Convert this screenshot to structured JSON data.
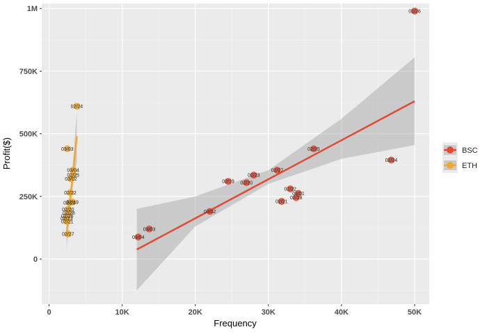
{
  "chart_data": {
    "type": "scatter",
    "xlabel": "Frequency",
    "ylabel": "Profit($)",
    "xlim": [
      -1000,
      52000
    ],
    "ylim": [
      -180000,
      1020000
    ],
    "x_ticks": [
      {
        "value": 0,
        "label": "0"
      },
      {
        "value": 10000,
        "label": "10K"
      },
      {
        "value": 20000,
        "label": "20K"
      },
      {
        "value": 30000,
        "label": "30K"
      },
      {
        "value": 40000,
        "label": "40K"
      },
      {
        "value": 50000,
        "label": "50K"
      }
    ],
    "y_ticks": [
      {
        "value": 0,
        "label": "0"
      },
      {
        "value": 250000,
        "label": "250K"
      },
      {
        "value": 500000,
        "label": "500K"
      },
      {
        "value": 750000,
        "label": "750K"
      },
      {
        "value": 1000000,
        "label": "1M"
      }
    ],
    "grid": true,
    "legend_position": "right",
    "series": [
      {
        "name": "BSC",
        "color": "#e24a33",
        "points": [
          {
            "x": 50000,
            "y": 990000,
            "label": "02/26"
          },
          {
            "x": 36200,
            "y": 440000,
            "label": "02/25"
          },
          {
            "x": 46800,
            "y": 395000,
            "label": "02/24"
          },
          {
            "x": 31200,
            "y": 355000,
            "label": "02/27"
          },
          {
            "x": 28000,
            "y": 335000,
            "label": "02/23"
          },
          {
            "x": 24500,
            "y": 310000,
            "label": "02/19"
          },
          {
            "x": 27000,
            "y": 305000,
            "label": "02/20"
          },
          {
            "x": 33000,
            "y": 280000,
            "label": "02/22"
          },
          {
            "x": 34100,
            "y": 262000,
            "label": "03/01"
          },
          {
            "x": 33800,
            "y": 245000,
            "label": "02/28"
          },
          {
            "x": 31800,
            "y": 230000,
            "label": "02/21"
          },
          {
            "x": 22000,
            "y": 190000,
            "label": "03/02"
          },
          {
            "x": 13700,
            "y": 120000,
            "label": "03/03"
          },
          {
            "x": 12200,
            "y": 88000,
            "label": "03/04"
          }
        ],
        "fit": {
          "x1": 12000,
          "y1": 38000,
          "x2": 50000,
          "y2": 630000
        },
        "band": {
          "upper": [
            [
              12000,
              200000
            ],
            [
              20000,
              250000
            ],
            [
              30000,
              355000
            ],
            [
              40000,
              560000
            ],
            [
              50000,
              805000
            ]
          ],
          "lower": [
            [
              12000,
              -125000
            ],
            [
              20000,
              130000
            ],
            [
              30000,
              300000
            ],
            [
              40000,
              400000
            ],
            [
              50000,
              455000
            ]
          ]
        }
      },
      {
        "name": "ETH",
        "color": "#f0a830",
        "points": [
          {
            "x": 3800,
            "y": 610000,
            "label": "02/24"
          },
          {
            "x": 2500,
            "y": 440000,
            "label": "03/03"
          },
          {
            "x": 3300,
            "y": 355000,
            "label": "03/04"
          },
          {
            "x": 3300,
            "y": 335000,
            "label": "02/25"
          },
          {
            "x": 3000,
            "y": 320000,
            "label": "03/02"
          },
          {
            "x": 2900,
            "y": 265000,
            "label": "02/22"
          },
          {
            "x": 3200,
            "y": 228000,
            "label": "02/19"
          },
          {
            "x": 2800,
            "y": 225000,
            "label": "02/20"
          },
          {
            "x": 2600,
            "y": 198000,
            "label": "02/20"
          },
          {
            "x": 2700,
            "y": 185000,
            "label": "02/28"
          },
          {
            "x": 2500,
            "y": 172000,
            "label": "02/26"
          },
          {
            "x": 2400,
            "y": 162000,
            "label": "02/23"
          },
          {
            "x": 2500,
            "y": 150000,
            "label": "02/21"
          },
          {
            "x": 2600,
            "y": 100000,
            "label": "02/27"
          }
        ],
        "fit": {
          "x1": 2400,
          "y1": 100000,
          "x2": 3800,
          "y2": 490000
        },
        "band": {
          "upper": [
            [
              2400,
              170000
            ],
            [
              3100,
              320000
            ],
            [
              3800,
              590000
            ]
          ],
          "lower": [
            [
              2400,
              40000
            ],
            [
              3100,
              260000
            ],
            [
              3800,
              390000
            ]
          ]
        }
      }
    ]
  }
}
